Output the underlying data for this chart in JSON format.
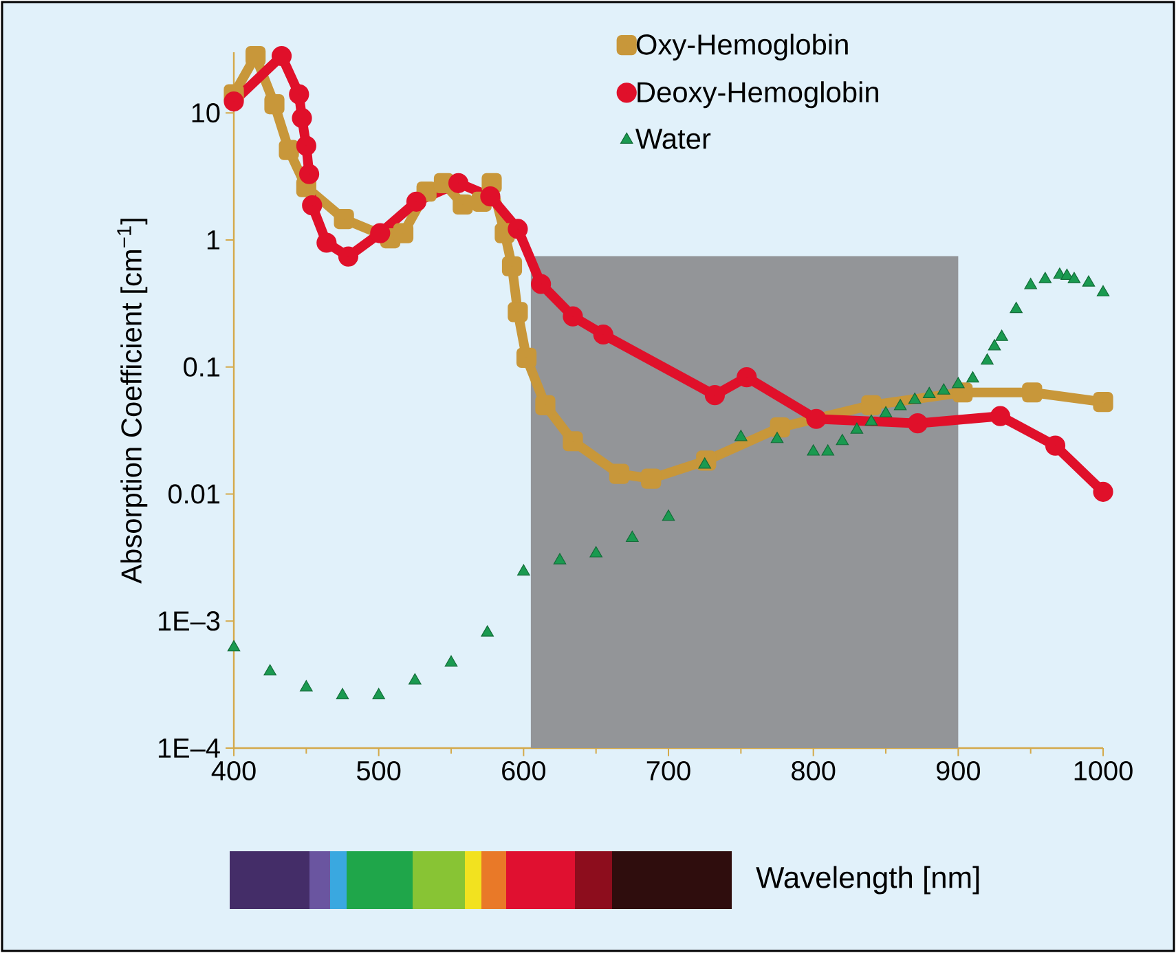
{
  "chart_data": {
    "type": "line",
    "xlabel": "Wavelength [nm]",
    "ylabel": "Absorption Coefficient [cm$^{−1}$]",
    "log": "y",
    "xlim": [
      400,
      1000
    ],
    "ylim": [
      0.0001,
      30
    ],
    "xticks": [
      400,
      500,
      600,
      700,
      800,
      900,
      1000
    ],
    "yticks": [
      {
        "value": 0.0001,
        "label": "1E–4"
      },
      {
        "value": 0.001,
        "label": "1E–3"
      },
      0.01,
      0.1,
      1,
      10
    ],
    "legend": "top right",
    "grid": false,
    "bands": [
      {
        "axis": "x",
        "from": 605,
        "to": 900,
        "color": "#939598"
      }
    ],
    "series": [
      {
        "name": "Oxy-Hemoglobin",
        "marker": "square",
        "color": "#c8973a",
        "x": [
          400,
          415,
          428,
          438,
          450,
          476,
          508,
          517,
          533,
          545,
          558,
          571,
          578,
          587,
          592,
          596,
          602,
          615,
          634,
          666,
          688,
          726,
          777,
          840,
          903,
          951,
          1000
        ],
        "values": [
          14,
          28,
          11.7,
          5.1,
          2.6,
          1.46,
          1.03,
          1.13,
          2.4,
          2.8,
          1.9,
          2.0,
          2.8,
          1.13,
          0.62,
          0.27,
          0.118,
          0.05,
          0.026,
          0.0144,
          0.0132,
          0.0183,
          0.0334,
          0.05,
          0.063,
          0.063,
          0.053
        ]
      },
      {
        "name": "Deoxy-Hemoglobin",
        "marker": "circle",
        "color": "#e0102a",
        "x": [
          400,
          433,
          445,
          447,
          450,
          452,
          454,
          464,
          479,
          501,
          526,
          555,
          577,
          596,
          612,
          634,
          655,
          732,
          754,
          802,
          872,
          929,
          967,
          1000
        ],
        "values": [
          12.3,
          28,
          14,
          9.1,
          5.5,
          3.3,
          1.87,
          0.95,
          0.74,
          1.13,
          2.0,
          2.8,
          2.2,
          1.22,
          0.45,
          0.25,
          0.18,
          0.06,
          0.083,
          0.039,
          0.036,
          0.041,
          0.024,
          0.0104
        ]
      },
      {
        "name": "Water",
        "type": "scatter",
        "marker": "triangle",
        "color": "#1a9a50",
        "x": [
          400,
          425,
          450,
          475,
          500,
          525,
          550,
          575,
          600,
          625,
          650,
          675,
          700,
          725,
          750,
          775,
          800,
          810,
          820,
          830,
          840,
          850,
          860,
          870,
          880,
          890,
          900,
          910,
          920,
          925,
          930,
          940,
          950,
          960,
          970,
          975,
          980,
          990,
          1000
        ],
        "values": [
          0.00062,
          0.0004,
          0.0003,
          0.00026,
          0.00026,
          0.00034,
          0.00047,
          0.00081,
          0.00245,
          0.003,
          0.0034,
          0.0045,
          0.0066,
          0.017,
          0.028,
          0.027,
          0.0215,
          0.0215,
          0.026,
          0.032,
          0.037,
          0.043,
          0.049,
          0.055,
          0.061,
          0.065,
          0.073,
          0.081,
          0.112,
          0.145,
          0.172,
          0.285,
          0.44,
          0.49,
          0.53,
          0.52,
          0.49,
          0.46,
          0.385
        ]
      }
    ]
  }
}
